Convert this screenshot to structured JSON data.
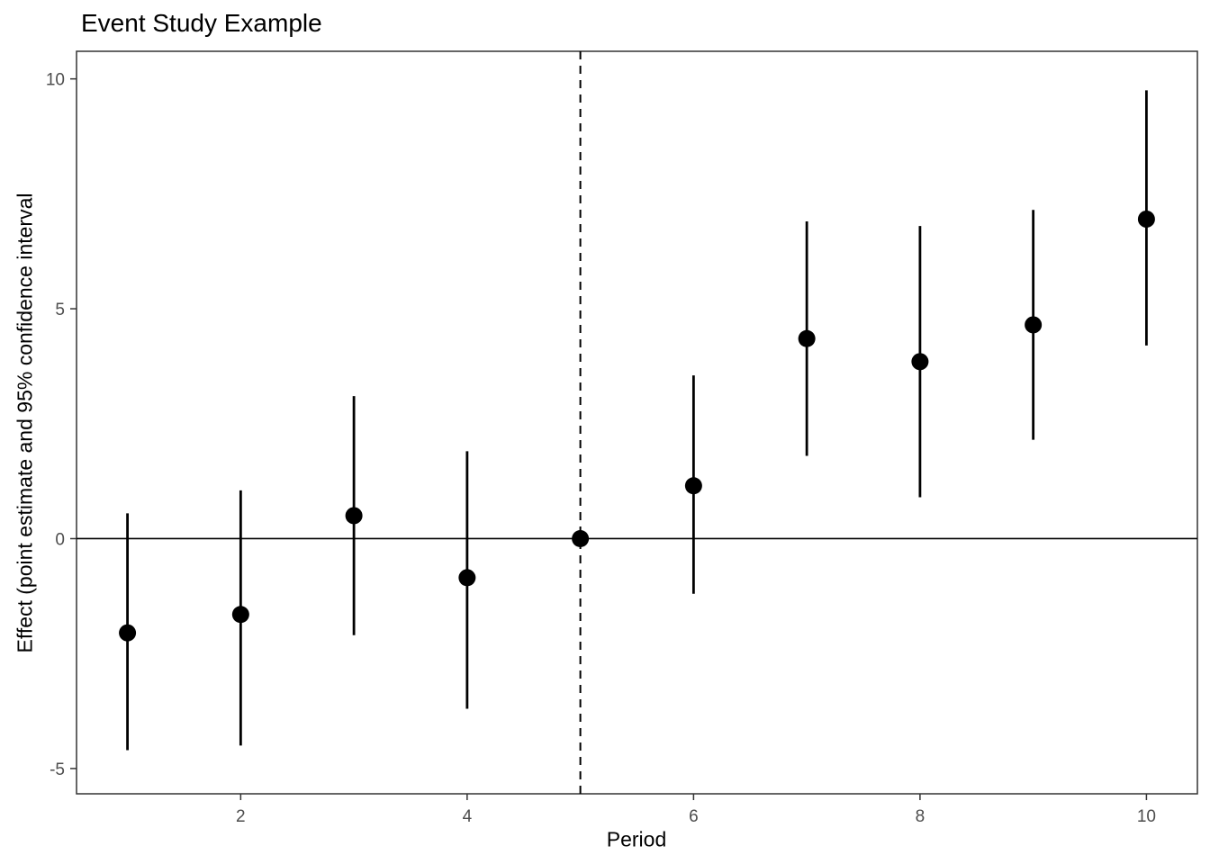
{
  "figure": {
    "title": "Event Study Example",
    "xlabel": "Period",
    "ylabel": "Effect (point estimate and 95% confidence interval"
  },
  "chart_data": {
    "type": "scatter",
    "title": "Event Study Example",
    "xlabel": "Period",
    "ylabel": "Effect (point estimate and 95% confidence interval",
    "x": [
      1,
      2,
      3,
      4,
      5,
      6,
      7,
      8,
      9,
      10
    ],
    "series": [
      {
        "name": "point_estimate",
        "values": [
          -2.05,
          -1.65,
          0.5,
          -0.85,
          0,
          1.15,
          4.35,
          3.85,
          4.65,
          6.95
        ]
      },
      {
        "name": "ci_lower",
        "values": [
          -4.6,
          -4.5,
          -2.1,
          -3.7,
          0,
          -1.2,
          1.8,
          0.9,
          2.15,
          4.2
        ]
      },
      {
        "name": "ci_upper",
        "values": [
          0.55,
          1.05,
          3.1,
          1.9,
          0,
          3.55,
          6.9,
          6.8,
          7.15,
          9.75
        ]
      }
    ],
    "reference_period": 5,
    "vline_x": 5,
    "hline_y": 0,
    "x_ticks": [
      2,
      4,
      6,
      8,
      10
    ],
    "y_ticks": [
      -5,
      0,
      5,
      10
    ],
    "xlim": [
      0.55,
      10.45
    ],
    "ylim": [
      -5.55,
      10.6
    ],
    "grid": false,
    "legend": "none",
    "point_color": "#000000",
    "line_color": "#000000",
    "tick_label_color": "#4d4d4d",
    "panel_border_color": "#333333",
    "panel_background": "#ffffff"
  }
}
